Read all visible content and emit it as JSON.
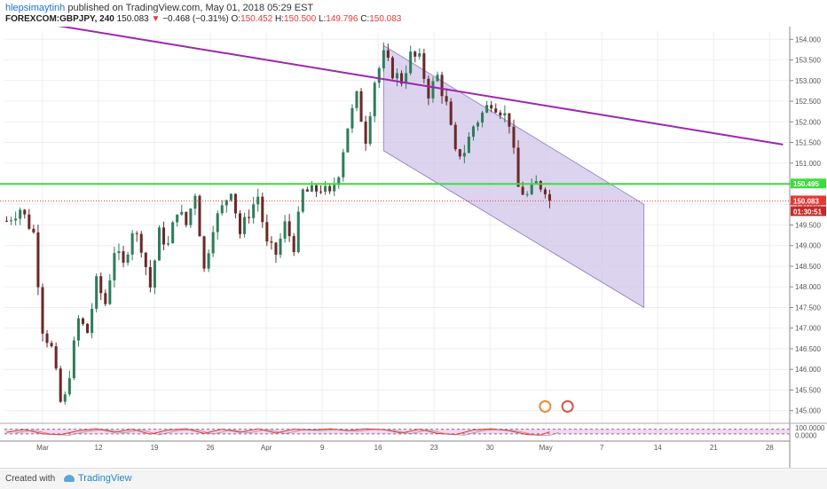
{
  "header": {
    "user": "hlepsimaytinh",
    "published_text": "published on TradingView.com, May 01, 2018 05:29 EST",
    "symbol": "FOREXCOM:GBPJPY, 240",
    "last": "150.083",
    "change_arrow": "▼",
    "change": "−0.468 (−0.31%)",
    "open_label": "O:",
    "open": "150.452",
    "high_label": "H:",
    "high": "150.500",
    "low_label": "L:",
    "low": "149.796",
    "close_label": "C:",
    "close": "150.083"
  },
  "footer": {
    "created": "Created with",
    "brand": "TradingView"
  },
  "colors": {
    "up_candle": "#2e7d5b",
    "down_candle": "#6b2828",
    "green_line": "#3ddc3d",
    "purple_line": "#9c27b0",
    "channel_fill": "#c9bde6",
    "stoch_k": "#e53935",
    "stoch_band": "#f2c9f2",
    "price_label_red": "#e53935"
  },
  "chart_data": {
    "type": "candlestick",
    "symbol": "FOREXCOM:GBPJPY",
    "timeframe": "240",
    "x_tick_labels": [
      "Mar",
      "12",
      "19",
      "26",
      "Apr",
      "9",
      "16",
      "23",
      "30",
      "May",
      "7",
      "14",
      "21",
      "28"
    ],
    "y_tick_labels": [
      "154.000",
      "153.500",
      "153.000",
      "152.500",
      "152.000",
      "151.500",
      "151.000",
      "150.500",
      "150.000",
      "149.500",
      "149.000",
      "148.500",
      "148.000",
      "147.500",
      "147.000",
      "146.500",
      "146.000",
      "145.500",
      "145.000"
    ],
    "ylim": [
      144.8,
      154.2
    ],
    "close_path": [
      [
        0,
        149.6
      ],
      [
        3,
        149.9
      ],
      [
        6,
        149.3
      ],
      [
        8,
        147.0
      ],
      [
        10,
        146.5
      ],
      [
        12,
        145.2
      ],
      [
        13,
        145.3
      ],
      [
        16,
        147.2
      ],
      [
        18,
        146.9
      ],
      [
        20,
        148.1
      ],
      [
        22,
        147.6
      ],
      [
        24,
        148.9
      ],
      [
        26,
        148.5
      ],
      [
        28,
        149.4
      ],
      [
        30,
        149.0
      ],
      [
        32,
        148.0
      ],
      [
        34,
        149.3
      ],
      [
        36,
        149.0
      ],
      [
        38,
        149.9
      ],
      [
        40,
        149.5
      ],
      [
        42,
        150.3
      ],
      [
        44,
        148.4
      ],
      [
        46,
        149.5
      ],
      [
        48,
        149.9
      ],
      [
        50,
        150.4
      ],
      [
        52,
        149.3
      ],
      [
        54,
        149.8
      ],
      [
        56,
        150.2
      ],
      [
        58,
        149.0
      ],
      [
        60,
        148.8
      ],
      [
        62,
        149.5
      ],
      [
        64,
        149.0
      ],
      [
        66,
        150.3
      ],
      [
        68,
        150.3
      ],
      [
        70,
        150.4
      ],
      [
        72,
        150.2
      ],
      [
        74,
        150.8
      ],
      [
        76,
        151.9
      ],
      [
        78,
        152.6
      ],
      [
        80,
        151.6
      ],
      [
        82,
        153.0
      ],
      [
        84,
        153.6
      ],
      [
        86,
        153.2
      ],
      [
        88,
        153.0
      ],
      [
        90,
        153.6
      ],
      [
        92,
        153.5
      ],
      [
        94,
        152.7
      ],
      [
        96,
        153.1
      ],
      [
        98,
        152.4
      ],
      [
        100,
        151.2
      ],
      [
        102,
        151.3
      ],
      [
        104,
        151.9
      ],
      [
        106,
        152.2
      ],
      [
        108,
        152.5
      ],
      [
        110,
        152.3
      ],
      [
        112,
        152.0
      ],
      [
        114,
        150.4
      ],
      [
        116,
        150.2
      ],
      [
        118,
        150.5
      ],
      [
        120,
        150.4
      ],
      [
        121,
        150.08
      ]
    ],
    "horizontal_lines": [
      {
        "price": 150.495,
        "label": "150.495",
        "color": "#3ddc3d"
      },
      {
        "price": 150.083,
        "label": "150.083",
        "color": "#e53935"
      }
    ],
    "countdown_label": "01:30:51",
    "trendline": {
      "from": [
        -1,
        154.55
      ],
      "to": [
        173,
        151.45
      ],
      "color": "#9c27b0"
    },
    "regression_channel": {
      "start": 84,
      "end": 142,
      "upper": [
        153.85,
        150.0
      ],
      "lower": [
        151.3,
        147.5
      ]
    },
    "stochastic": {
      "ylim": [
        -5,
        110
      ],
      "levels": [
        80,
        20
      ],
      "tick_labels": [
        "100.0000",
        "0.0000"
      ],
      "k_path": [
        [
          0,
          40
        ],
        [
          4,
          75
        ],
        [
          8,
          20
        ],
        [
          12,
          10
        ],
        [
          16,
          60
        ],
        [
          20,
          85
        ],
        [
          24,
          40
        ],
        [
          28,
          80
        ],
        [
          32,
          15
        ],
        [
          36,
          70
        ],
        [
          40,
          85
        ],
        [
          44,
          25
        ],
        [
          48,
          80
        ],
        [
          52,
          40
        ],
        [
          56,
          85
        ],
        [
          60,
          30
        ],
        [
          64,
          80
        ],
        [
          68,
          70
        ],
        [
          72,
          85
        ],
        [
          76,
          60
        ],
        [
          80,
          85
        ],
        [
          84,
          75
        ],
        [
          88,
          30
        ],
        [
          92,
          80
        ],
        [
          96,
          25
        ],
        [
          100,
          10
        ],
        [
          104,
          70
        ],
        [
          108,
          85
        ],
        [
          112,
          60
        ],
        [
          116,
          10
        ],
        [
          119,
          5
        ],
        [
          121,
          45
        ]
      ]
    }
  }
}
